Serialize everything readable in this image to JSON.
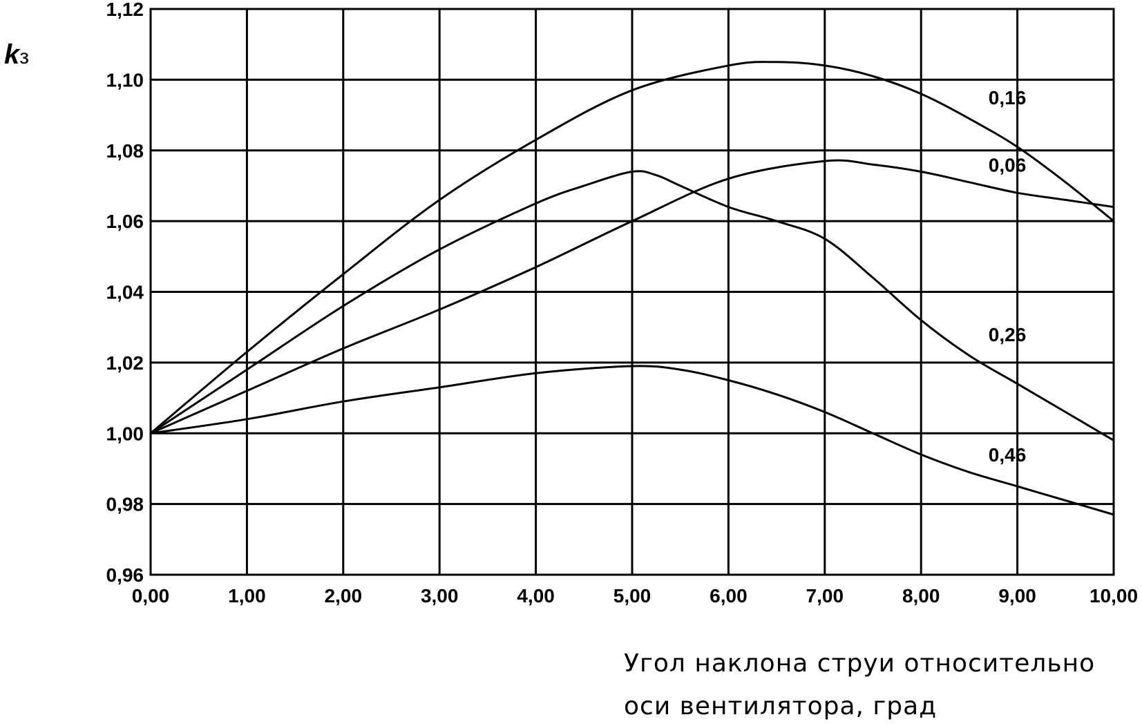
{
  "chart_data": {
    "type": "line",
    "title": "",
    "ylabel": {
      "main": "k",
      "sub": "з"
    },
    "xlabel": [
      "Угол наклона струи относительно",
      "оси вентилятора, град"
    ],
    "xlim": [
      0,
      10
    ],
    "ylim": [
      0.96,
      1.12
    ],
    "grid": true,
    "legend": "none",
    "x_ticks": [
      {
        "value": 0,
        "label": "0,00"
      },
      {
        "value": 1,
        "label": "1,00"
      },
      {
        "value": 2,
        "label": "2,00"
      },
      {
        "value": 3,
        "label": "3,00"
      },
      {
        "value": 4,
        "label": "4,00"
      },
      {
        "value": 5,
        "label": "5,00"
      },
      {
        "value": 6,
        "label": "6,00"
      },
      {
        "value": 7,
        "label": "7,00"
      },
      {
        "value": 8,
        "label": "8,00"
      },
      {
        "value": 9,
        "label": "9,00"
      },
      {
        "value": 10,
        "label": "10,00"
      }
    ],
    "y_ticks": [
      {
        "value": 0.96,
        "label": "0,96"
      },
      {
        "value": 0.98,
        "label": "0,98"
      },
      {
        "value": 1.0,
        "label": "1,00"
      },
      {
        "value": 1.02,
        "label": "1,02"
      },
      {
        "value": 1.04,
        "label": "1,04"
      },
      {
        "value": 1.06,
        "label": "1,06"
      },
      {
        "value": 1.08,
        "label": "1,08"
      },
      {
        "value": 1.1,
        "label": "1,10"
      },
      {
        "value": 1.12,
        "label": "1,12"
      }
    ],
    "series": [
      {
        "name": "0,16",
        "label_at": [
          8.7,
          1.093
        ],
        "x": [
          0,
          1,
          2,
          3,
          4,
          5,
          6,
          6.5,
          7,
          7.5,
          8,
          8.5,
          9,
          9.5,
          10
        ],
        "y": [
          1.0,
          1.023,
          1.045,
          1.066,
          1.083,
          1.097,
          1.104,
          1.105,
          1.104,
          1.101,
          1.096,
          1.089,
          1.081,
          1.071,
          1.06
        ]
      },
      {
        "name": "0,06",
        "label_at": [
          8.7,
          1.074
        ],
        "x": [
          0,
          1,
          2,
          3,
          4,
          5,
          6,
          7,
          7.5,
          8,
          8.5,
          9,
          9.5,
          10
        ],
        "y": [
          1.0,
          1.012,
          1.024,
          1.035,
          1.047,
          1.06,
          1.072,
          1.077,
          1.076,
          1.074,
          1.071,
          1.068,
          1.066,
          1.064
        ]
      },
      {
        "name": "0,26",
        "label_at": [
          8.7,
          1.026
        ],
        "x": [
          0,
          1,
          2,
          3,
          4,
          4.5,
          5,
          5.25,
          5.5,
          6,
          6.5,
          7,
          7.5,
          8,
          8.5,
          9,
          9.5,
          10
        ],
        "y": [
          1.0,
          1.018,
          1.036,
          1.052,
          1.065,
          1.07,
          1.074,
          1.073,
          1.07,
          1.064,
          1.06,
          1.055,
          1.044,
          1.032,
          1.022,
          1.014,
          1.006,
          0.998
        ]
      },
      {
        "name": "0,46",
        "label_at": [
          8.7,
          0.992
        ],
        "x": [
          0,
          1,
          2,
          3,
          4,
          5,
          5.5,
          6,
          6.5,
          7,
          7.5,
          8,
          8.5,
          9,
          9.5,
          10
        ],
        "y": [
          1.0,
          1.004,
          1.009,
          1.013,
          1.017,
          1.019,
          1.018,
          1.015,
          1.011,
          1.006,
          1.0,
          0.994,
          0.989,
          0.985,
          0.981,
          0.977
        ]
      }
    ]
  }
}
